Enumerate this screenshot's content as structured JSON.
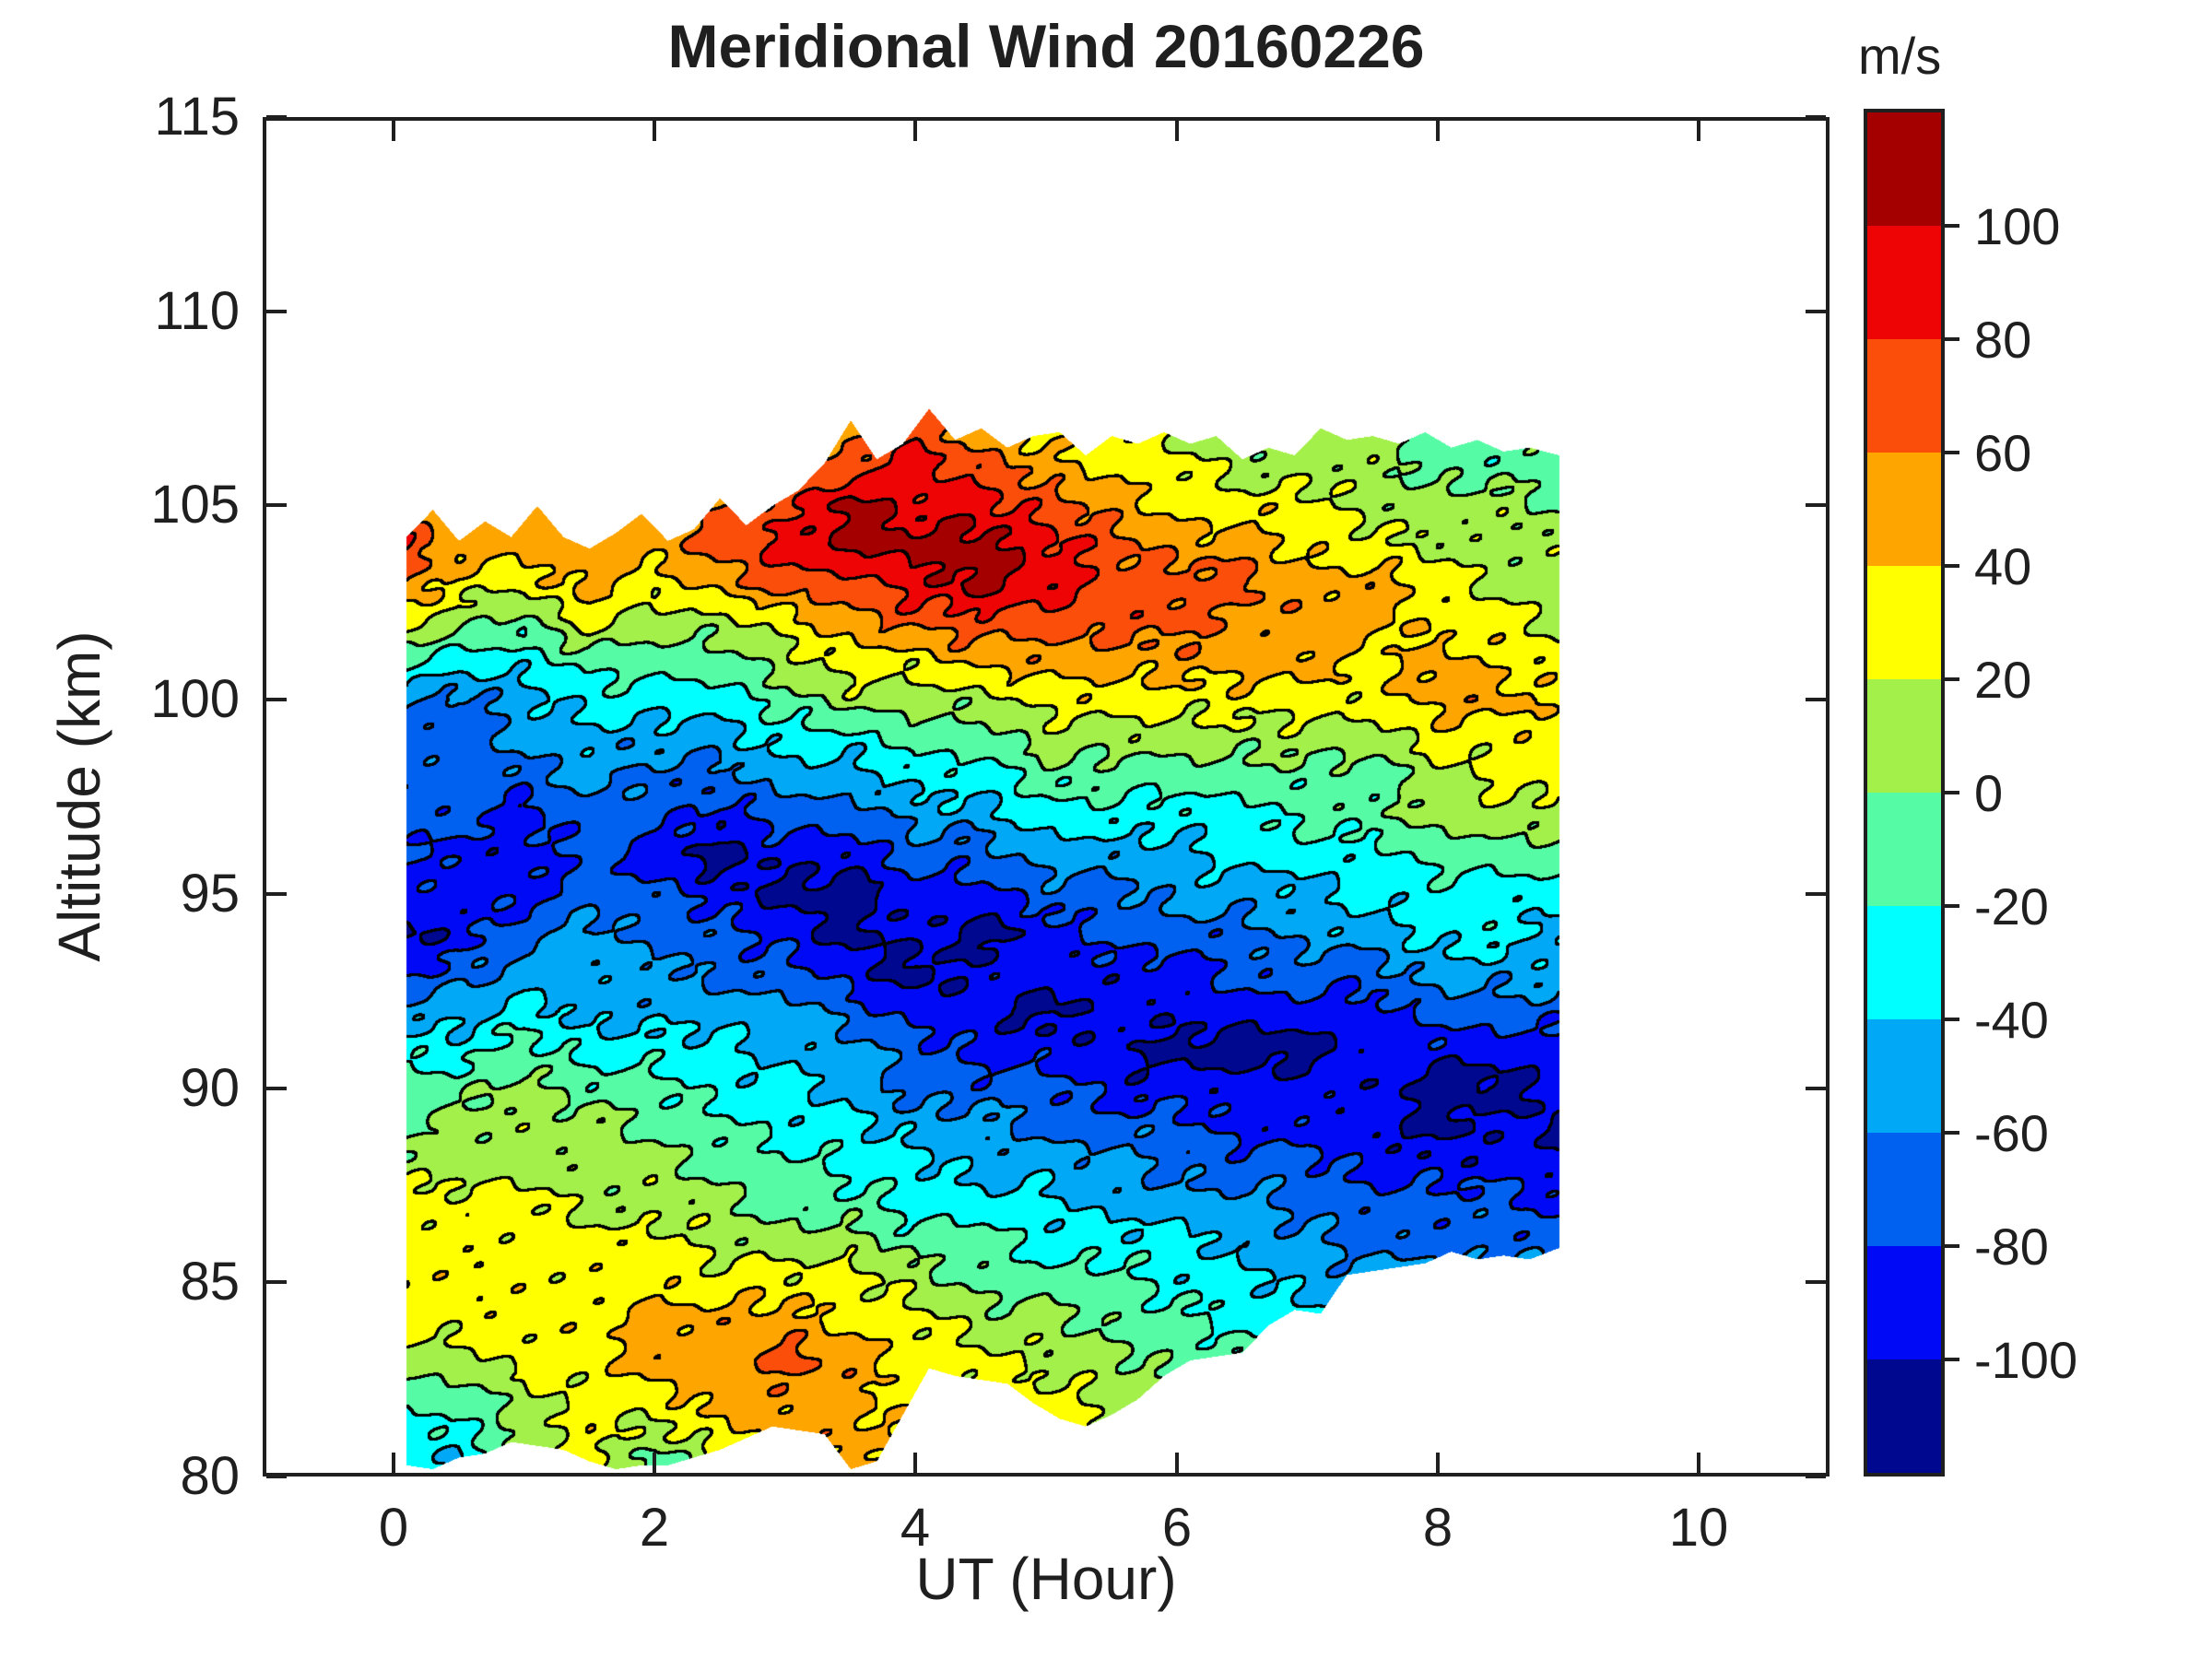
{
  "header": {
    "title": "Meridional Wind 20160226"
  },
  "axes": {
    "x": {
      "label": "UT (Hour)",
      "min": -1,
      "max": 11,
      "ticks": [
        0,
        2,
        4,
        6,
        8,
        10
      ],
      "tick_labels": [
        "0",
        "2",
        "4",
        "6",
        "8",
        "10"
      ]
    },
    "y": {
      "label": "Altitude (km)",
      "min": 80,
      "max": 115,
      "ticks": [
        80,
        85,
        90,
        95,
        100,
        105,
        110,
        115
      ],
      "tick_labels": [
        "80",
        "85",
        "90",
        "95",
        "100",
        "105",
        "110",
        "115"
      ]
    }
  },
  "colorbar": {
    "unit_label": "m/s",
    "tick_values": [
      100,
      80,
      60,
      40,
      20,
      0,
      -20,
      -40,
      -60,
      -80,
      -100
    ],
    "tick_labels": [
      "100",
      "80",
      "60",
      "40",
      "20",
      "0",
      "-20",
      "-40",
      "-60",
      "-80",
      "-100"
    ],
    "band_colors_low_to_high": [
      "#000890",
      "#0009F5",
      "#0061F0",
      "#00A8F5",
      "#00FFFF",
      "#55FCA5",
      "#A3F04A",
      "#FFFF00",
      "#FFA500",
      "#FB4E0B",
      "#EE0404",
      "#A40000"
    ]
  },
  "style": {
    "background": "#FFFFFF",
    "axis_color": "#1F1F1F",
    "contour_line_color": "#000000",
    "wiggle_amp_primary": 8,
    "wiggle_amp_secondary": 4
  },
  "chart_data": {
    "type": "heatmap",
    "subtype": "filled_contour",
    "title": "Meridional Wind 20160226",
    "xlabel": "UT (Hour)",
    "ylabel": "Altitude (km)",
    "unit": "m/s",
    "xlim": [
      -1,
      11
    ],
    "ylim": [
      80,
      115
    ],
    "grid_on": false,
    "legend_position": "right-colorbar",
    "contour_levels": [
      -100,
      -80,
      -60,
      -40,
      -20,
      0,
      20,
      40,
      60,
      80,
      100
    ],
    "grid": {
      "hours": [
        0,
        0.5,
        1,
        1.5,
        2,
        2.5,
        3,
        3.5,
        4,
        4.5,
        5,
        5.5,
        6,
        6.5,
        7,
        7.5,
        8,
        8.5,
        9
      ],
      "altitudes_km": [
        80,
        81,
        82,
        83,
        84,
        85,
        86,
        87,
        88,
        89,
        90,
        91,
        92,
        93,
        94,
        95,
        96,
        97,
        98,
        99,
        100,
        101,
        102,
        103,
        104,
        105,
        106,
        107
      ],
      "order": "wind_ms[i][j] = wind at hours[i], altitudes_km[j]",
      "wind_ms": [
        [
          -30,
          -30,
          -10,
          10,
          30,
          30,
          30,
          30,
          10,
          -10,
          -10,
          -30,
          -50,
          -90,
          -110,
          -90,
          -70,
          -70,
          -70,
          -70,
          -50,
          -10,
          30,
          70,
          90,
          50,
          40,
          40
        ],
        [
          -50,
          -30,
          -10,
          10,
          30,
          30,
          30,
          30,
          10,
          10,
          -10,
          -30,
          -50,
          -70,
          -90,
          -90,
          -90,
          -70,
          -70,
          -70,
          -70,
          -30,
          10,
          30,
          50,
          50,
          40,
          40
        ],
        [
          10,
          10,
          10,
          30,
          30,
          30,
          30,
          30,
          10,
          10,
          10,
          -10,
          -30,
          -50,
          -70,
          -90,
          -90,
          -90,
          -70,
          -50,
          -50,
          -30,
          -10,
          30,
          50,
          50,
          40,
          40
        ],
        [
          30,
          30,
          30,
          30,
          30,
          30,
          30,
          10,
          10,
          10,
          -10,
          -30,
          -50,
          -50,
          -50,
          -70,
          -70,
          -70,
          -50,
          -50,
          -30,
          -10,
          30,
          50,
          50,
          40,
          40,
          40
        ],
        [
          -30,
          10,
          30,
          50,
          50,
          30,
          30,
          10,
          10,
          -10,
          -10,
          -30,
          -50,
          -50,
          -70,
          -70,
          -90,
          -70,
          -70,
          -50,
          -30,
          -10,
          10,
          30,
          50,
          60,
          50,
          40
        ],
        [
          10,
          30,
          50,
          50,
          50,
          30,
          10,
          10,
          -10,
          -10,
          -30,
          -30,
          -50,
          -70,
          -70,
          -90,
          -110,
          -90,
          -70,
          -50,
          -30,
          -10,
          10,
          50,
          70,
          60,
          50,
          40
        ],
        [
          30,
          50,
          50,
          70,
          50,
          30,
          10,
          -10,
          -10,
          -30,
          -30,
          -50,
          -50,
          -70,
          -90,
          -110,
          -90,
          -70,
          -50,
          -30,
          -10,
          10,
          30,
          70,
          90,
          70,
          50,
          40
        ],
        [
          50,
          50,
          50,
          50,
          30,
          30,
          10,
          -10,
          -30,
          -30,
          -50,
          -50,
          -70,
          -90,
          -110,
          -110,
          -90,
          -70,
          -50,
          -30,
          10,
          30,
          50,
          70,
          110,
          110,
          70,
          50
        ],
        [
          30,
          30,
          30,
          30,
          30,
          10,
          -10,
          -30,
          -30,
          -50,
          -70,
          -70,
          -90,
          -110,
          -90,
          -90,
          -70,
          -50,
          -30,
          -10,
          10,
          30,
          70,
          90,
          110,
          90,
          90,
          70
        ],
        [
          30,
          50,
          30,
          30,
          10,
          -10,
          -10,
          -30,
          -50,
          -50,
          -70,
          -90,
          -90,
          -90,
          -110,
          -90,
          -70,
          -50,
          -30,
          -10,
          10,
          50,
          70,
          110,
          110,
          90,
          70,
          50
        ],
        [
          50,
          30,
          30,
          10,
          10,
          -10,
          -30,
          -30,
          -50,
          -70,
          -70,
          -90,
          -110,
          -90,
          -90,
          -70,
          -50,
          -30,
          -10,
          10,
          30,
          50,
          70,
          90,
          90,
          70,
          50,
          30
        ],
        [
          30,
          30,
          10,
          10,
          -10,
          -10,
          -30,
          -50,
          -50,
          -70,
          -90,
          -90,
          -90,
          -90,
          -70,
          -70,
          -50,
          -30,
          -10,
          10,
          30,
          50,
          70,
          70,
          70,
          50,
          30,
          30
        ],
        [
          10,
          10,
          10,
          -10,
          -10,
          -30,
          -30,
          -50,
          -70,
          -70,
          -90,
          -110,
          -90,
          -90,
          -70,
          -50,
          -50,
          -30,
          -10,
          10,
          30,
          50,
          70,
          70,
          50,
          30,
          30,
          10
        ],
        [
          10,
          10,
          -10,
          -10,
          -30,
          -30,
          -50,
          -50,
          -70,
          -90,
          -90,
          -110,
          -90,
          -70,
          -70,
          -50,
          -30,
          -30,
          -10,
          10,
          30,
          50,
          50,
          70,
          50,
          30,
          10,
          10
        ],
        [
          -10,
          -10,
          -10,
          -30,
          -30,
          -50,
          -50,
          -70,
          -70,
          -90,
          -90,
          -110,
          -90,
          -70,
          -50,
          -50,
          -30,
          -10,
          -10,
          10,
          30,
          50,
          50,
          50,
          30,
          30,
          10,
          10
        ],
        [
          -10,
          -10,
          -10,
          -30,
          -30,
          -50,
          -70,
          -70,
          -90,
          -90,
          -90,
          -90,
          -90,
          -70,
          -50,
          -30,
          -30,
          -10,
          -10,
          10,
          30,
          30,
          50,
          50,
          30,
          10,
          10,
          10
        ],
        [
          -30,
          -10,
          -10,
          -30,
          -30,
          -30,
          -70,
          -70,
          -90,
          -110,
          -110,
          -90,
          -70,
          -50,
          -30,
          -30,
          -10,
          10,
          10,
          30,
          50,
          50,
          30,
          30,
          10,
          10,
          -10,
          -10
        ],
        [
          -30,
          -30,
          -10,
          -30,
          -30,
          -50,
          -70,
          -70,
          -90,
          -90,
          -110,
          -90,
          -70,
          -50,
          -30,
          -30,
          -10,
          10,
          30,
          30,
          50,
          30,
          30,
          10,
          10,
          10,
          -10,
          -10
        ],
        [
          -30,
          -30,
          -30,
          -30,
          -50,
          -50,
          -70,
          -90,
          -90,
          -110,
          -90,
          -90,
          -70,
          -50,
          -50,
          -30,
          -10,
          10,
          30,
          30,
          30,
          30,
          10,
          10,
          10,
          -10,
          -10,
          -10
        ]
      ]
    },
    "envelope": {
      "comment": "data region boundary: valid data between bottom_km and top_km at each hour",
      "hours": [
        0.1,
        0.3,
        0.5,
        0.7,
        0.9,
        1.1,
        1.3,
        1.5,
        1.7,
        1.9,
        2.1,
        2.3,
        2.5,
        2.7,
        2.9,
        3.1,
        3.3,
        3.5,
        3.7,
        3.9,
        4.1,
        4.3,
        4.5,
        4.7,
        4.9,
        5.1,
        5.3,
        5.5,
        5.7,
        5.9,
        6.1,
        6.3,
        6.5,
        6.7,
        6.9,
        7.1,
        7.3,
        7.5,
        7.7,
        7.9,
        8.1,
        8.3,
        8.5,
        8.7,
        8.93
      ],
      "top_km": [
        104.2,
        104.9,
        104.1,
        104.6,
        104.2,
        105.0,
        104.2,
        103.9,
        104.3,
        104.8,
        104.1,
        104.4,
        105.2,
        104.5,
        105.0,
        105.4,
        106.1,
        107.2,
        106.2,
        106.6,
        107.5,
        106.7,
        107.0,
        106.5,
        106.8,
        106.9,
        106.3,
        106.8,
        106.6,
        106.9,
        106.6,
        106.8,
        106.2,
        106.5,
        106.3,
        107.0,
        106.7,
        106.8,
        106.6,
        106.9,
        106.5,
        106.7,
        106.4,
        106.5,
        106.3
      ],
      "bottom_km": [
        80.3,
        80.2,
        80.5,
        80.6,
        80.9,
        80.8,
        80.7,
        80.4,
        80.2,
        80.3,
        80.3,
        80.5,
        80.7,
        81.0,
        81.3,
        81.2,
        81.1,
        80.2,
        80.4,
        81.6,
        82.8,
        82.6,
        82.5,
        82.4,
        81.9,
        81.5,
        81.3,
        81.6,
        82.0,
        82.6,
        83.0,
        83.1,
        83.2,
        83.9,
        84.3,
        84.2,
        85.2,
        85.3,
        85.4,
        85.5,
        85.8,
        85.6,
        85.7,
        85.6,
        85.9
      ]
    }
  }
}
